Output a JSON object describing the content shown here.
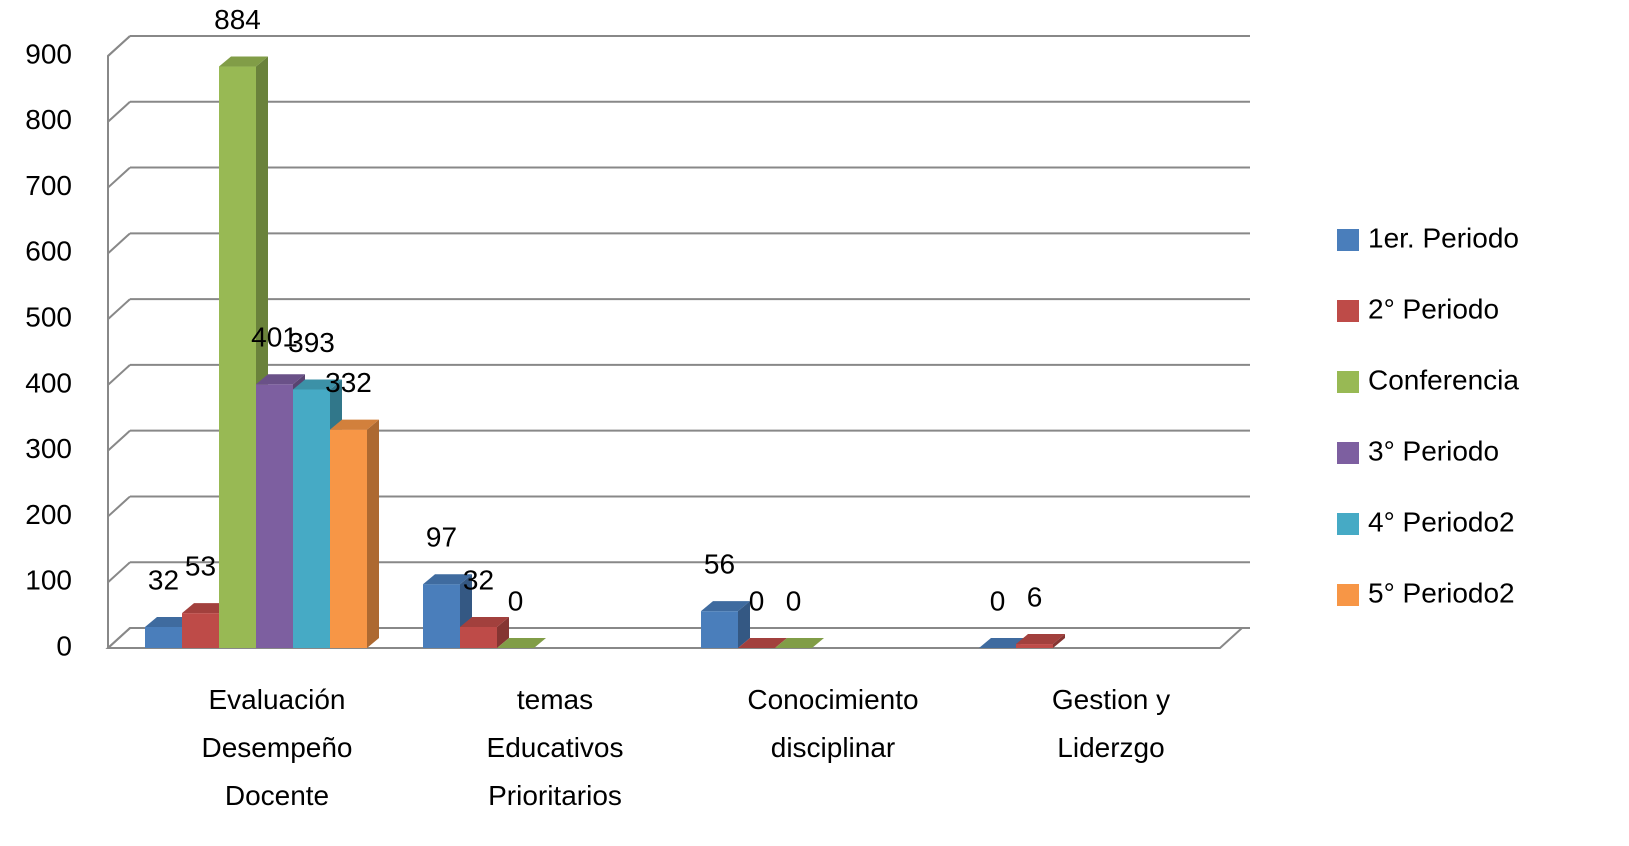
{
  "chart_data": {
    "type": "bar3d",
    "categories": [
      "Evaluación Desempeño Docente",
      "temas Educativos Prioritarios",
      "Conocimiento disciplinar",
      "Gestion y Liderzgo"
    ],
    "series": [
      {
        "name": "1er. Periodo",
        "color": "#4a7ebb",
        "values": [
          32,
          97,
          56,
          0
        ]
      },
      {
        "name": "2° Periodo",
        "color": "#be4b48",
        "values": [
          53,
          32,
          0,
          6
        ]
      },
      {
        "name": "Conferencia",
        "color": "#98b954",
        "values": [
          884,
          0,
          0,
          null
        ]
      },
      {
        "name": "3° Periodo",
        "color": "#7d5fa0",
        "values": [
          401,
          null,
          null,
          null
        ]
      },
      {
        "name": "4° Periodo2",
        "color": "#46aac5",
        "values": [
          393,
          null,
          null,
          null
        ]
      },
      {
        "name": "5° Periodo2",
        "color": "#f79646",
        "values": [
          332,
          null,
          null,
          null
        ]
      }
    ],
    "ylim": [
      0,
      900
    ],
    "yticks": [
      0,
      100,
      200,
      300,
      400,
      500,
      600,
      700,
      800,
      900
    ],
    "grid": true,
    "legend": "right"
  }
}
